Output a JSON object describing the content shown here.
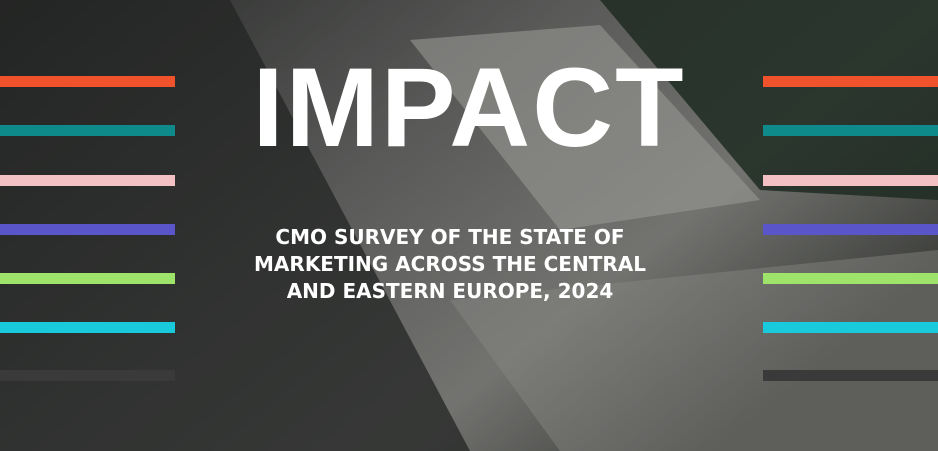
{
  "title": "IMPACT",
  "subtitle_lines": [
    "CMO SURVEY OF THE STATE OF",
    "MARKETING ACROSS THE CENTRAL",
    "AND EASTERN EUROPE, 2024"
  ]
}
